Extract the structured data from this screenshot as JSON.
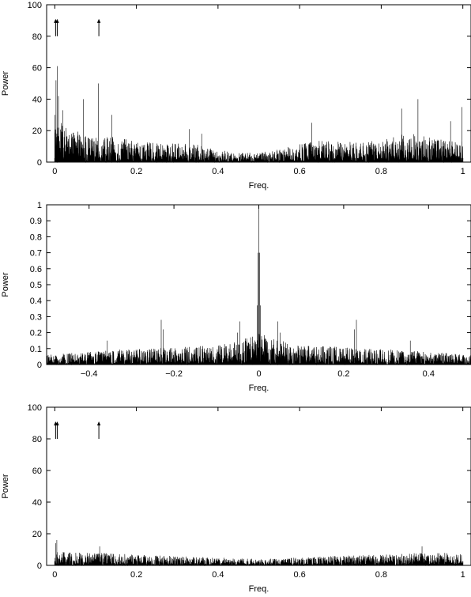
{
  "chart_data": [
    {
      "type": "line",
      "xlabel": "Freq.",
      "ylabel": "Power",
      "xlim": [
        -0.02,
        1.02
      ],
      "ylim": [
        0,
        100
      ],
      "xticks": [
        0,
        0.2,
        0.4,
        0.6,
        0.8,
        1
      ],
      "xtick_labels": [
        "0",
        "0.2",
        "0.4",
        "0.6",
        "0.8",
        "1"
      ],
      "yticks": [
        0,
        20,
        40,
        60,
        80,
        100
      ],
      "ytick_labels": [
        "0",
        "20",
        "40",
        "60",
        "80",
        "100"
      ],
      "grid": false,
      "envelope": {
        "x": [
          0,
          0.01,
          0.03,
          0.05,
          0.07,
          0.09,
          0.11,
          0.13,
          0.15,
          0.2,
          0.25,
          0.3,
          0.35,
          0.4,
          0.45,
          0.5,
          0.55,
          0.6,
          0.65,
          0.7,
          0.75,
          0.8,
          0.85,
          0.9,
          0.95,
          1.0
        ],
        "y": [
          30,
          26,
          22,
          20,
          18,
          16,
          15,
          16,
          16,
          13,
          12,
          12,
          11,
          8,
          6,
          6,
          8,
          12,
          14,
          13,
          13,
          14,
          18,
          18,
          14,
          14
        ]
      },
      "peaks": {
        "x": [
          0.0,
          0.003,
          0.006,
          0.009,
          0.02,
          0.07,
          0.107,
          0.14,
          0.33,
          0.36,
          0.63,
          0.85,
          0.89,
          0.97,
          0.998
        ],
        "y": [
          30,
          52,
          61,
          42,
          33,
          40,
          50,
          30,
          21,
          18,
          25,
          34,
          40,
          26,
          35
        ]
      },
      "arrows_x": [
        0.002,
        0.006,
        0.108
      ]
    },
    {
      "type": "line",
      "xlabel": "Freq.",
      "ylabel": "Power",
      "xlim": [
        -0.5,
        0.5
      ],
      "ylim": [
        0,
        1
      ],
      "xticks": [
        -0.4,
        -0.2,
        0,
        0.2,
        0.4
      ],
      "xtick_labels": [
        "−0.4",
        "−0.2",
        "0",
        "0.2",
        "0.4"
      ],
      "yticks": [
        0,
        0.1,
        0.2,
        0.3,
        0.4,
        0.5,
        0.6,
        0.7,
        0.8,
        0.9,
        1
      ],
      "ytick_labels": [
        "0",
        "0.1",
        "0.2",
        "0.3",
        "0.4",
        "0.5",
        "0.6",
        "0.7",
        "0.8",
        "0.9",
        "1"
      ],
      "grid": false,
      "envelope": {
        "x": [
          -0.5,
          -0.4,
          -0.3,
          -0.2,
          -0.1,
          -0.05,
          0,
          0.05,
          0.1,
          0.2,
          0.3,
          0.4,
          0.5
        ],
        "y": [
          0.06,
          0.08,
          0.1,
          0.11,
          0.12,
          0.15,
          0.2,
          0.15,
          0.12,
          0.11,
          0.1,
          0.08,
          0.06
        ]
      },
      "peaks": {
        "x": [
          -0.357,
          -0.23,
          -0.225,
          -0.05,
          -0.045,
          -0.004,
          -0.002,
          0,
          0.002,
          0.004,
          0.045,
          0.05,
          0.225,
          0.23,
          0.357
        ],
        "y": [
          0.15,
          0.28,
          0.22,
          0.2,
          0.27,
          0.37,
          0.7,
          1.0,
          0.7,
          0.37,
          0.27,
          0.2,
          0.22,
          0.28,
          0.15
        ]
      }
    },
    {
      "type": "line",
      "xlabel": "Freq.",
      "ylabel": "Power",
      "xlim": [
        -0.02,
        1.02
      ],
      "ylim": [
        0,
        100
      ],
      "xticks": [
        0,
        0.2,
        0.4,
        0.6,
        0.8,
        1
      ],
      "xtick_labels": [
        "0",
        "0.2",
        "0.4",
        "0.6",
        "0.8",
        "1"
      ],
      "yticks": [
        0,
        20,
        40,
        60,
        80,
        100
      ],
      "ytick_labels": [
        "0",
        "20",
        "40",
        "60",
        "80",
        "100"
      ],
      "grid": false,
      "envelope": {
        "x": [
          0,
          0.05,
          0.1,
          0.2,
          0.3,
          0.4,
          0.5,
          0.6,
          0.7,
          0.8,
          0.9,
          1.0
        ],
        "y": [
          9,
          8,
          8,
          7,
          6,
          5,
          4,
          5,
          6,
          7,
          8,
          8
        ]
      },
      "peaks": {
        "x": [
          0.002,
          0.005,
          0.11,
          0.9
        ],
        "y": [
          14,
          16,
          12,
          12
        ]
      },
      "arrows_x": [
        0.002,
        0.006,
        0.108
      ]
    }
  ]
}
